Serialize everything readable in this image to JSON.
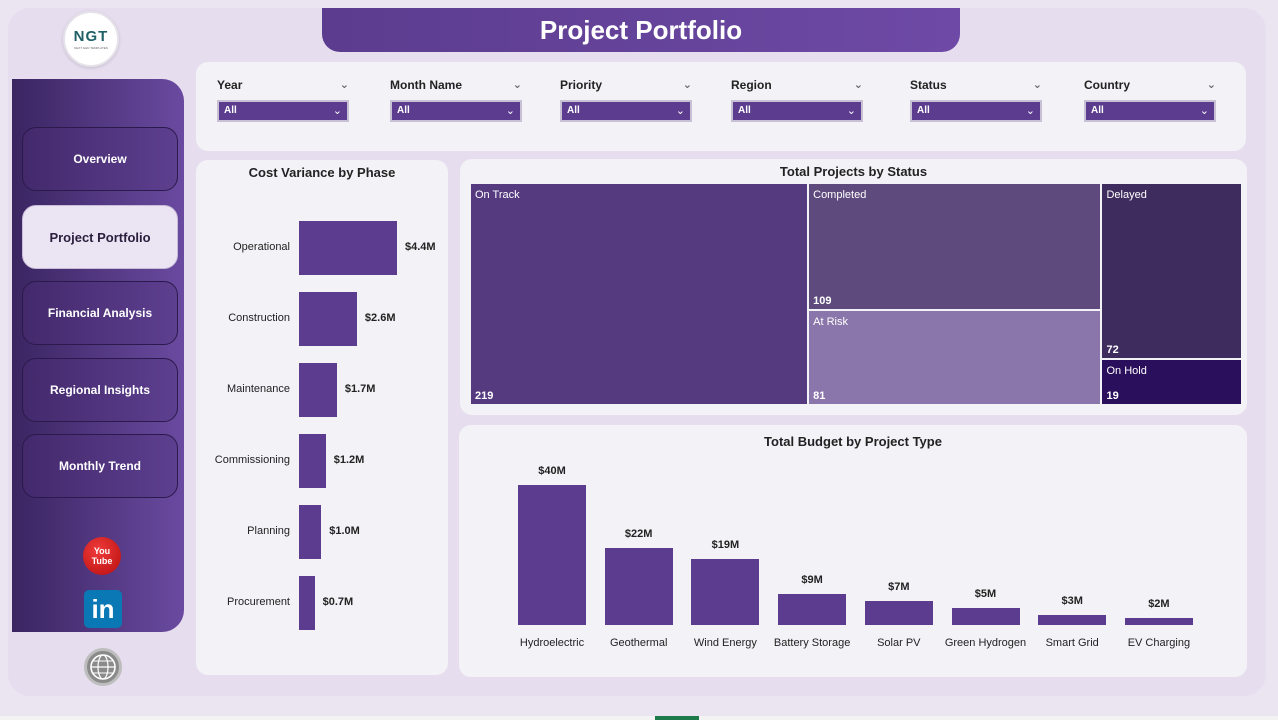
{
  "app": {
    "logo_text": "NGT",
    "logo_sub": "NEXT GEN TEMPLATES",
    "title": "Project Portfolio"
  },
  "nav": {
    "items": [
      {
        "label": "Overview",
        "active": false
      },
      {
        "label": "Project Portfolio",
        "active": true
      },
      {
        "label": "Financial Analysis",
        "active": false
      },
      {
        "label": "Regional Insights",
        "active": false
      },
      {
        "label": "Monthly Trend",
        "active": false
      }
    ]
  },
  "social": {
    "youtube_top": "You",
    "youtube_bottom": "Tube",
    "linkedin": "in"
  },
  "filters": [
    {
      "label": "Year",
      "value": "All"
    },
    {
      "label": "Month Name",
      "value": "All"
    },
    {
      "label": "Priority",
      "value": "All"
    },
    {
      "label": "Region",
      "value": "All"
    },
    {
      "label": "Status",
      "value": "All"
    },
    {
      "label": "Country",
      "value": "All"
    }
  ],
  "colors": {
    "accent": "#5b3c8e",
    "tile_on_track": "#553a80",
    "tile_completed": "#5e4a7c",
    "tile_at_risk": "#8b76ab",
    "tile_delayed": "#3f2c5e",
    "tile_on_hold": "#2a0f5c"
  },
  "chart_data": [
    {
      "type": "bar",
      "orientation": "horizontal",
      "title": "Cost Variance by Phase",
      "categories": [
        "Operational",
        "Construction",
        "Maintenance",
        "Commissioning",
        "Planning",
        "Procurement"
      ],
      "values": [
        4.4,
        2.6,
        1.7,
        1.2,
        1.0,
        0.7
      ],
      "value_labels": [
        "$4.4M",
        "$2.6M",
        "$1.7M",
        "$1.2M",
        "$1.0M",
        "$0.7M"
      ],
      "unit": "$M"
    },
    {
      "type": "treemap",
      "title": "Total Projects by Status",
      "categories": [
        "On Track",
        "Completed",
        "At Risk",
        "Delayed",
        "On Hold"
      ],
      "values": [
        219,
        109,
        81,
        72,
        19
      ],
      "value_labels": [
        "219",
        "109",
        "81",
        "72",
        "19"
      ]
    },
    {
      "type": "bar",
      "title": "Total Budget by Project Type",
      "categories": [
        "Hydroelectric",
        "Geothermal",
        "Wind Energy",
        "Battery Storage",
        "Solar PV",
        "Green Hydrogen",
        "Smart Grid",
        "EV Charging"
      ],
      "values": [
        40,
        22,
        19,
        9,
        7,
        5,
        3,
        2
      ],
      "value_labels": [
        "$40M",
        "$22M",
        "$19M",
        "$9M",
        "$7M",
        "$5M",
        "$3M",
        "$2M"
      ],
      "unit": "$M"
    }
  ]
}
